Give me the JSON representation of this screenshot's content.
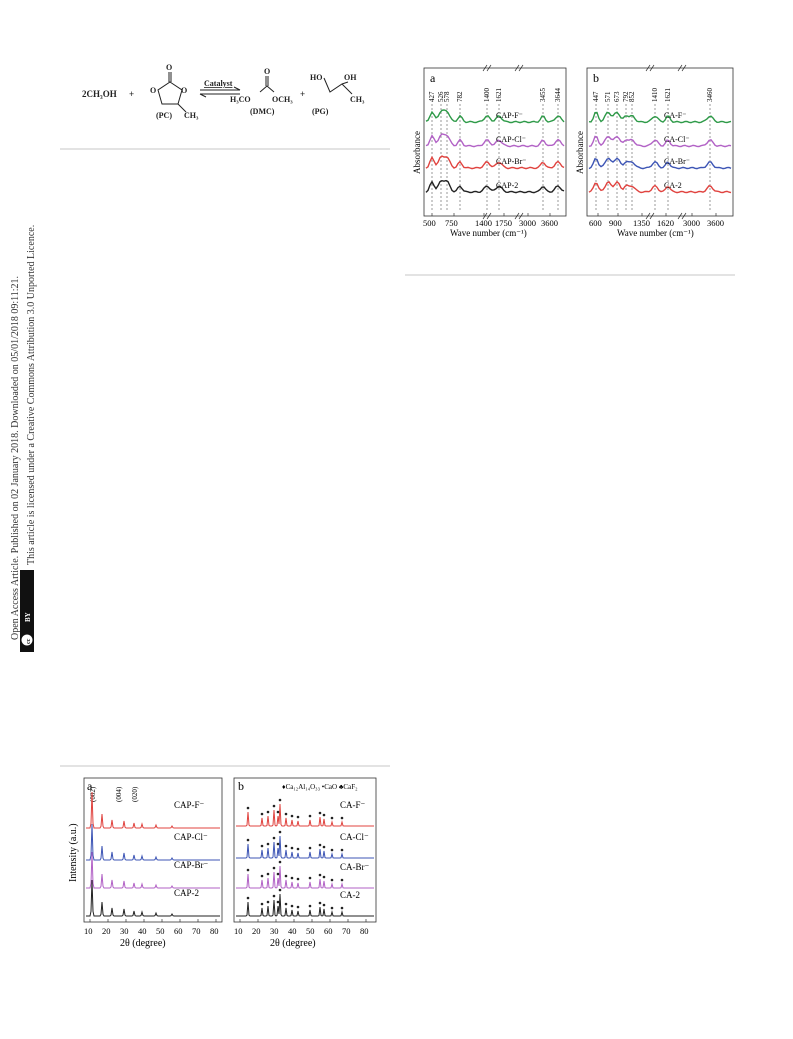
{
  "reaction": {
    "reagent": "2CH₃OH",
    "plus1": "+",
    "pc_label": "(PC)",
    "pc_ch3": "CH₃",
    "pc_o_top": "O",
    "pc_o_ring1": "O",
    "pc_o_ring2": "O",
    "catalyst": "Catalyst",
    "dmc_label": "(DMC)",
    "dmc_left": "H₃CO",
    "dmc_right": "OCH₃",
    "dmc_o": "O",
    "plus2": "+",
    "pg_label": "(PG)",
    "pg_ho": "HO",
    "pg_oh": "OH",
    "pg_ch3": "CH₃"
  },
  "sidebar": {
    "line1": "Open Access Article. Published on 02 January 2018. Downloaded on 05/01/2018 09:11:21.",
    "line2": "This article is licensed under a Creative Commons Attribution 3.0 Unported Licence.",
    "badge_cc": "cc",
    "badge_by": "BY"
  },
  "ftir": {
    "panel_a": {
      "letter": "a",
      "ylabel": "Absorbance",
      "xlabel": "Wave number (cm⁻¹)",
      "ticks": [
        "500",
        "750",
        "1400",
        "1750",
        "3000",
        "3600"
      ],
      "peaks": [
        "427",
        "526",
        "578",
        "782",
        "1400",
        "1621",
        "3455",
        "3644"
      ],
      "series": [
        "CAP-F⁻",
        "CAP-Cl⁻",
        "CAP-Br⁻",
        "CAP-2"
      ]
    },
    "panel_b": {
      "letter": "b",
      "ylabel": "Absorbance",
      "xlabel": "Wave number (cm⁻¹)",
      "ticks": [
        "600",
        "900",
        "1350",
        "1620",
        "3000",
        "3600"
      ],
      "peaks": [
        "447",
        "571",
        "673",
        "792",
        "852",
        "1410",
        "1621",
        "3460"
      ],
      "series": [
        "CA-F⁻",
        "CA-Cl⁻",
        "CA-Br⁻",
        "CA-2"
      ]
    },
    "colors": {
      "green": "#2e9a48",
      "purple": "#b262c6",
      "red": "#e0433f",
      "blue": "#3d55b5",
      "black": "#222222"
    }
  },
  "xrd": {
    "panel_a": {
      "letter": "a",
      "ylabel": "Intensity (a.u.)",
      "xlabel": "2θ  (degree)",
      "ticks": [
        "10",
        "20",
        "30",
        "40",
        "50",
        "60",
        "70",
        "80"
      ],
      "peaks": [
        "(002)",
        "(004)",
        "(020)"
      ],
      "series": [
        "CAP-F⁻",
        "CAP-Cl⁻",
        "CAP-Br⁻",
        "CAP-2"
      ]
    },
    "panel_b": {
      "letter": "b",
      "xlabel": "2θ  (degree)",
      "ticks": [
        "10",
        "20",
        "30",
        "40",
        "50",
        "60",
        "70",
        "80"
      ],
      "legend": "♦Ca₁₂Al₁₄O₃₃ •CaO ♣CaF₂",
      "series": [
        "CA-F⁻",
        "CA-Cl⁻",
        "CA-Br⁻",
        "CA-2"
      ]
    }
  }
}
